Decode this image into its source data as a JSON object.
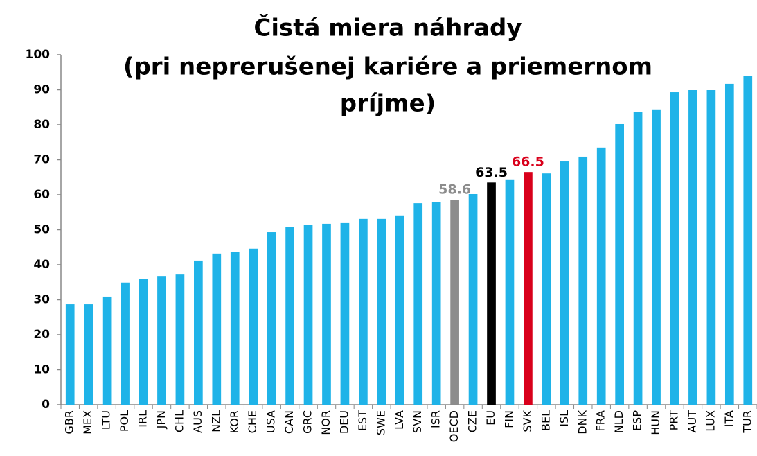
{
  "chart_data": {
    "type": "bar",
    "title": [
      "Čistá miera náhrady",
      "(pri neprerušenej kariére a priemernom",
      "príjme)"
    ],
    "categories": [
      "GBR",
      "MEX",
      "LTU",
      "POL",
      "IRL",
      "JPN",
      "CHL",
      "AUS",
      "NZL",
      "KOR",
      "CHE",
      "USA",
      "CAN",
      "GRC",
      "NOR",
      "DEU",
      "EST",
      "SWE",
      "LVA",
      "SVN",
      "ISR",
      "OECD",
      "CZE",
      "EU",
      "FIN",
      "SVK",
      "BEL",
      "ISL",
      "DNK",
      "FRA",
      "NLD",
      "ESP",
      "HUN",
      "PRT",
      "AUT",
      "LUX",
      "ITA",
      "TUR"
    ],
    "values": [
      28.7,
      28.7,
      30.9,
      34.9,
      36,
      36.8,
      37.2,
      41.2,
      43.2,
      43.6,
      44.6,
      49.3,
      50.7,
      51.3,
      51.7,
      51.9,
      53.1,
      53.1,
      54.1,
      57.6,
      58,
      58.6,
      60.2,
      63.5,
      64.2,
      66.5,
      66.1,
      69.5,
      70.9,
      73.5,
      80.2,
      83.6,
      84.2,
      89.3,
      89.9,
      89.9,
      91.7,
      93.9
    ],
    "value_labels": [
      null,
      null,
      null,
      null,
      null,
      null,
      null,
      null,
      null,
      null,
      null,
      null,
      null,
      null,
      null,
      null,
      null,
      null,
      null,
      null,
      null,
      "58.6",
      null,
      "63.5",
      null,
      "66.5",
      null,
      null,
      null,
      null,
      null,
      null,
      null,
      null,
      null,
      null,
      null,
      null
    ],
    "colors": [
      "#1fb3e8",
      "#1fb3e8",
      "#1fb3e8",
      "#1fb3e8",
      "#1fb3e8",
      "#1fb3e8",
      "#1fb3e8",
      "#1fb3e8",
      "#1fb3e8",
      "#1fb3e8",
      "#1fb3e8",
      "#1fb3e8",
      "#1fb3e8",
      "#1fb3e8",
      "#1fb3e8",
      "#1fb3e8",
      "#1fb3e8",
      "#1fb3e8",
      "#1fb3e8",
      "#1fb3e8",
      "#1fb3e8",
      "#8c8c8c",
      "#1fb3e8",
      "#000000",
      "#1fb3e8",
      "#d9001b",
      "#1fb3e8",
      "#1fb3e8",
      "#1fb3e8",
      "#1fb3e8",
      "#1fb3e8",
      "#1fb3e8",
      "#1fb3e8",
      "#1fb3e8",
      "#1fb3e8",
      "#1fb3e8",
      "#1fb3e8",
      "#1fb3e8"
    ],
    "ylim": [
      0,
      100
    ],
    "yticks": [
      0,
      10,
      20,
      30,
      40,
      50,
      60,
      70,
      80,
      90,
      100
    ],
    "grid": false
  }
}
